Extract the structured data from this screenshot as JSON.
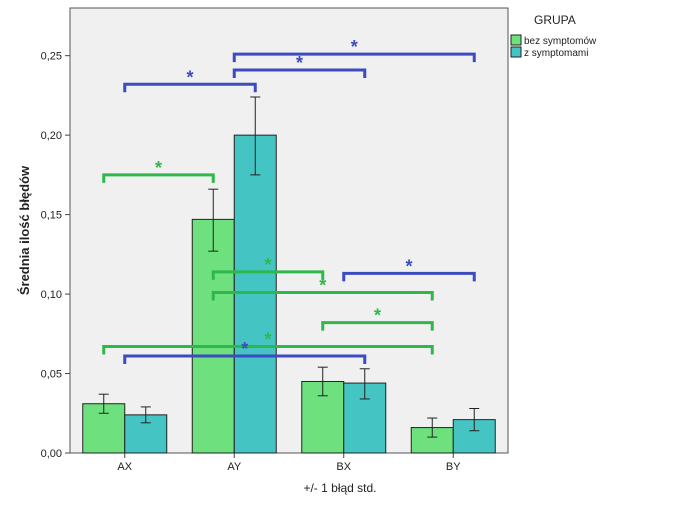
{
  "chart_data": {
    "type": "bar",
    "title": "",
    "ylabel": "Średnia ilość błędów",
    "xlabel": "+/- 1 błąd std.",
    "ylim": [
      0,
      0.28
    ],
    "yticks": [
      0,
      0.05,
      0.1,
      0.15,
      0.2,
      0.25
    ],
    "ytick_labels": [
      "0,00",
      "0,05",
      "0,10",
      "0,15",
      "0,20",
      "0,25"
    ],
    "categories": [
      "AX",
      "AY",
      "BX",
      "BY"
    ],
    "grid": false,
    "plot_background": "#f0f0f0",
    "legend": {
      "title": "GRUPA",
      "placement": "right"
    },
    "series": [
      {
        "name": "bez symptomów",
        "color": "#6ee07e",
        "values": [
          0.031,
          0.147,
          0.045,
          0.016
        ],
        "err_low": [
          0.025,
          0.127,
          0.036,
          0.01
        ],
        "err_high": [
          0.037,
          0.166,
          0.054,
          0.022
        ]
      },
      {
        "name": "z symptomami",
        "color": "#45c4c4",
        "values": [
          0.024,
          0.2,
          0.044,
          0.021
        ],
        "err_low": [
          0.019,
          0.175,
          0.034,
          0.014
        ],
        "err_high": [
          0.029,
          0.224,
          0.053,
          0.028
        ]
      }
    ],
    "significance_marks": [
      {
        "from": "AX",
        "to": "AY",
        "level": 0.175,
        "color": "#2eb84c",
        "label": "*"
      },
      {
        "from": "AX",
        "to": "BY",
        "level": 0.067,
        "color": "#2eb84c",
        "label": "*"
      },
      {
        "from": "AY",
        "to": "BX",
        "level": 0.114,
        "color": "#2eb84c",
        "label": "*"
      },
      {
        "from": "AY",
        "to": "BY",
        "level": 0.101,
        "color": "#2eb84c",
        "label": "*"
      },
      {
        "from": "BX",
        "to": "BY",
        "level": 0.082,
        "color": "#2eb84c",
        "label": "*"
      },
      {
        "from": "AX",
        "to": "BX",
        "level": 0.061,
        "color": "#3b4bc0",
        "label": "*"
      },
      {
        "from": "AX",
        "to": "AY",
        "level": 0.232,
        "color": "#3b4bc0",
        "label": "*"
      },
      {
        "from": "AY",
        "to": "BX",
        "level": 0.241,
        "color": "#3b4bc0",
        "label": "*"
      },
      {
        "from": "AY",
        "to": "BY",
        "level": 0.251,
        "color": "#3b4bc0",
        "label": "*"
      },
      {
        "from": "BX",
        "to": "BY",
        "level": 0.113,
        "color": "#3b4bc0",
        "label": "*"
      }
    ]
  }
}
